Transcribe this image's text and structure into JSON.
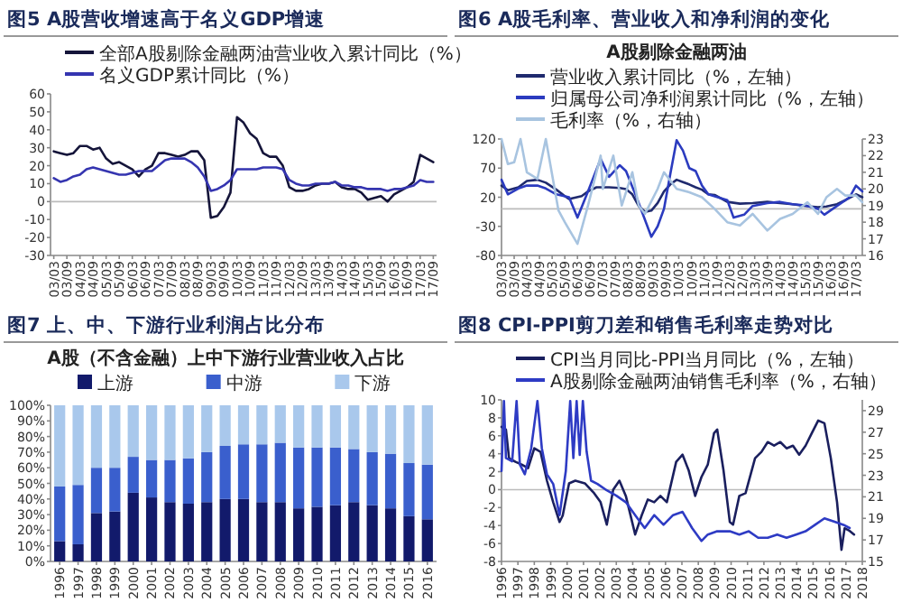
{
  "chart_data": [
    {
      "type": "line",
      "title": "图5  A股营收增速高于名义GDP增速",
      "legend": "top",
      "categories": [
        "03/03",
        null,
        "03/09",
        null,
        "04/03",
        null,
        "04/09",
        null,
        "05/03",
        null,
        "05/09",
        null,
        "06/03",
        null,
        "06/09",
        null,
        "07/03",
        null,
        "07/09",
        null,
        "08/03",
        null,
        "08/09",
        null,
        "09/03",
        null,
        "09/09",
        null,
        "10/03",
        null,
        "10/09",
        null,
        "11/03",
        null,
        "11/09",
        null,
        "12/03",
        null,
        "12/09",
        null,
        "13/03",
        null,
        "13/09",
        null,
        "14/03",
        null,
        "14/09",
        null,
        "15/03",
        null,
        "15/09",
        null,
        "16/03",
        null,
        "16/09",
        null,
        "17/03",
        null,
        "17/09"
      ],
      "ylim": [
        -30,
        60
      ],
      "yticks": [
        -30,
        -20,
        -10,
        0,
        10,
        20,
        30,
        40,
        50,
        60
      ],
      "ref_lines": [
        {
          "axis": "y",
          "value": 0,
          "color": "#bbbbbb"
        }
      ],
      "series": [
        {
          "name": "全部A股剔除金融两油营业收入累计同比（%）",
          "color": "#15153a",
          "values": [
            28,
            27,
            26,
            27,
            31,
            31,
            29,
            30,
            24,
            21,
            22,
            20,
            18,
            14,
            18,
            20,
            27,
            27,
            26,
            25,
            26,
            28,
            28,
            23,
            -9,
            -8,
            -3,
            5,
            47,
            44,
            38,
            35,
            27,
            25,
            25,
            20,
            8,
            6,
            6,
            7,
            9,
            10,
            10,
            11,
            8,
            7,
            7,
            5,
            1,
            2,
            3,
            0,
            4,
            6,
            8,
            11,
            26,
            24,
            22
          ]
        },
        {
          "name": "名义GDP累计同比（%）",
          "color": "#3535b0",
          "values": [
            13,
            11,
            12,
            14,
            15,
            18,
            19,
            18,
            17,
            16,
            15,
            15,
            16,
            17,
            17,
            17,
            20,
            23,
            24,
            24,
            24,
            22,
            19,
            14,
            6,
            7,
            9,
            12,
            18,
            18,
            18,
            18,
            19,
            19,
            19,
            18,
            12,
            10,
            9,
            9,
            10,
            10,
            10,
            11,
            9,
            9,
            8,
            8,
            7,
            7,
            7,
            6,
            7,
            7,
            8,
            9,
            12,
            11,
            11
          ]
        }
      ]
    },
    {
      "type": "line",
      "title": "图6  A股毛利率、营业收入和净利润的变化",
      "subtitle": "A股剔除金融两油",
      "legend": "top",
      "xlim": [
        "2003-03",
        "2017-06"
      ],
      "xticks": [
        {
          "value": "2003-03",
          "label": "03/03"
        },
        {
          "value": "2003-09",
          "label": "03/09"
        },
        {
          "value": "2004-03",
          "label": "04/03"
        },
        {
          "value": "2004-09",
          "label": "04/09"
        },
        {
          "value": "2005-03",
          "label": "05/03"
        },
        {
          "value": "2005-09",
          "label": "05/09"
        },
        {
          "value": "2006-03",
          "label": "06/03"
        },
        {
          "value": "2006-09",
          "label": "06/09"
        },
        {
          "value": "2007-03",
          "label": "07/03"
        },
        {
          "value": "2007-09",
          "label": "07/09"
        },
        {
          "value": "2008-03",
          "label": "08/03"
        },
        {
          "value": "2008-09",
          "label": "08/09"
        },
        {
          "value": "2009-03",
          "label": "09/03"
        },
        {
          "value": "2009-09",
          "label": "09/09"
        },
        {
          "value": "2010-03",
          "label": "10/03"
        },
        {
          "value": "2010-09",
          "label": "10/09"
        },
        {
          "value": "2011-03",
          "label": "11/03"
        },
        {
          "value": "2011-09",
          "label": "11/09"
        },
        {
          "value": "2012-03",
          "label": "12/03"
        },
        {
          "value": "2012-09",
          "label": "12/09"
        },
        {
          "value": "2013-03",
          "label": "13/03"
        },
        {
          "value": "2013-09",
          "label": "13/09"
        },
        {
          "value": "2014-03",
          "label": "14/03"
        },
        {
          "value": "2014-09",
          "label": "14/09"
        },
        {
          "value": "2015-03",
          "label": "15/03"
        },
        {
          "value": "2015-09",
          "label": "15/09"
        },
        {
          "value": "2016-03",
          "label": "16/03"
        },
        {
          "value": "2016-09",
          "label": "16/09"
        },
        {
          "value": "2017-03",
          "label": "17/03"
        }
      ],
      "ylim": [
        -80,
        120
      ],
      "yticks": [
        -80,
        -30,
        20,
        70,
        120
      ],
      "y2lim": [
        16,
        23
      ],
      "y2ticks": [
        16,
        17,
        18,
        19,
        20,
        21,
        22,
        23
      ],
      "ref_lines": [
        {
          "axis": "y",
          "value": 0,
          "color": "#bbbbbb"
        }
      ],
      "series": [
        {
          "name": "营业收入累计同比（%，左轴）",
          "color": "#1f2a6e",
          "x": [
            "2003-03",
            "2003-06",
            "2003-11",
            "2004-03",
            "2004-08",
            "2004-12",
            "2005-05",
            "2005-09",
            "2005-11",
            "2006-05",
            "2006-08",
            "2006-12",
            "2007-06",
            "2007-11",
            "2008-02",
            "2008-05",
            "2008-08",
            "2008-11",
            "2009-02",
            "2009-05",
            "2009-08",
            "2009-11",
            "2010-02",
            "2010-05",
            "2010-08",
            "2010-11",
            "2011-02",
            "2011-05",
            "2011-08",
            "2012-02",
            "2012-08",
            "2013-02",
            "2013-09",
            "2014-03",
            "2014-09",
            "2015-03",
            "2015-09",
            "2016-01",
            "2016-06",
            "2016-10",
            "2017-03",
            "2017-06"
          ],
          "values": [
            40,
            32,
            37,
            48,
            50,
            45,
            33,
            22,
            17,
            22,
            30,
            37,
            37,
            36,
            34,
            25,
            5,
            -5,
            -3,
            10,
            30,
            42,
            50,
            46,
            42,
            37,
            33,
            25,
            24,
            12,
            9,
            10,
            12,
            10,
            8,
            5,
            3,
            4,
            8,
            15,
            25,
            20
          ]
        },
        {
          "name": "归属母公司净利润累计同比（%，左轴）",
          "color": "#2b3bbf",
          "x": [
            "2003-03",
            "2003-06",
            "2003-11",
            "2004-03",
            "2004-08",
            "2004-12",
            "2005-05",
            "2005-11",
            "2006-03",
            "2006-08",
            "2007-02",
            "2007-06",
            "2007-11",
            "2008-02",
            "2008-07",
            "2009-02",
            "2009-05",
            "2009-08",
            "2009-11",
            "2010-02",
            "2010-05",
            "2010-08",
            "2010-11",
            "2011-02",
            "2011-05",
            "2012-02",
            "2012-05",
            "2012-10",
            "2013-02",
            "2013-09",
            "2014-03",
            "2014-09",
            "2015-03",
            "2015-09",
            "2015-12",
            "2016-06",
            "2016-12",
            "2017-03",
            "2017-06"
          ],
          "values": [
            50,
            25,
            35,
            40,
            40,
            35,
            25,
            20,
            -15,
            30,
            86,
            55,
            75,
            65,
            20,
            -48,
            -30,
            0,
            60,
            118,
            100,
            70,
            65,
            40,
            25,
            15,
            -15,
            -10,
            5,
            10,
            12,
            8,
            6,
            0,
            -10,
            5,
            20,
            40,
            30
          ]
        },
        {
          "name": "毛利率（%，右轴）",
          "color": "#a8c4e0",
          "axis": "y2",
          "x": [
            "2003-03",
            "2003-06",
            "2003-09",
            "2003-12",
            "2004-03",
            "2004-08",
            "2004-12",
            "2005-06",
            "2005-09",
            "2006-03",
            "2006-08",
            "2007-02",
            "2007-03",
            "2007-08",
            "2007-12",
            "2008-05",
            "2008-08",
            "2008-11",
            "2009-05",
            "2009-08",
            "2009-11",
            "2010-02",
            "2010-08",
            "2011-02",
            "2011-08",
            "2012-02",
            "2012-08",
            "2013-02",
            "2013-09",
            "2014-03",
            "2014-09",
            "2015-04",
            "2015-09",
            "2016-01",
            "2016-06",
            "2016-10",
            "2017-03",
            "2017-06"
          ],
          "values": [
            23,
            21.5,
            21.6,
            23,
            21,
            20.6,
            23,
            18.7,
            18,
            16.7,
            19,
            22,
            20,
            22,
            19,
            21,
            19,
            18.5,
            20,
            21,
            20.5,
            20,
            19.8,
            19.5,
            18.8,
            18,
            17.8,
            18.5,
            17.5,
            18.2,
            18.5,
            19.2,
            18.5,
            19.5,
            20,
            19.6,
            19.6,
            19.2
          ]
        }
      ]
    },
    {
      "type": "bar",
      "stacked": true,
      "title": "图7  上、中、下游行业利润占比分布",
      "subtitle": "A股（不含金融）上中下游行业营业收入占比",
      "legend": "top",
      "categories": [
        "1996",
        "1997",
        "1998",
        "1999",
        "2000",
        "2001",
        "2002",
        "2003",
        "2004",
        "2005",
        "2006",
        "2007",
        "2008",
        "2009",
        "2010",
        "2011",
        "2012",
        "2013",
        "2014",
        "2015",
        "2016"
      ],
      "ylim": [
        0,
        100
      ],
      "yticks": [
        {
          "value": 0,
          "label": "0%"
        },
        {
          "value": 10,
          "label": "10%"
        },
        {
          "value": 20,
          "label": "20%"
        },
        {
          "value": 30,
          "label": "30%"
        },
        {
          "value": 40,
          "label": "40%"
        },
        {
          "value": 50,
          "label": "50%"
        },
        {
          "value": 60,
          "label": "60%"
        },
        {
          "value": 70,
          "label": "70%"
        },
        {
          "value": 80,
          "label": "80%"
        },
        {
          "value": 90,
          "label": "90%"
        },
        {
          "value": 100,
          "label": "100%"
        }
      ],
      "series": [
        {
          "name": "上游",
          "color": "#121a6b",
          "values": [
            13,
            11,
            31,
            32,
            44,
            41,
            38,
            37,
            38,
            40,
            40,
            38,
            38,
            34,
            35,
            36,
            38,
            36,
            34,
            29,
            27
          ]
        },
        {
          "name": "中游",
          "color": "#3a5fcd",
          "values": [
            35,
            38,
            29,
            28,
            23,
            24,
            27,
            29,
            32,
            34,
            35,
            37,
            38,
            39,
            38,
            37,
            34,
            34,
            35,
            34,
            35
          ]
        },
        {
          "name": "下游",
          "color": "#a9c8ec",
          "values": [
            52,
            51,
            40,
            40,
            33,
            35,
            35,
            34,
            30,
            26,
            25,
            25,
            24,
            27,
            27,
            27,
            28,
            30,
            31,
            37,
            38
          ]
        }
      ]
    },
    {
      "type": "line",
      "title": "图8  CPI-PPI剪刀差和销售毛利率走势对比",
      "legend": "top",
      "xlim": [
        1996,
        2018
      ],
      "xticks": [
        1996,
        1997,
        1998,
        1999,
        2000,
        2001,
        2002,
        2003,
        2004,
        2005,
        2006,
        2007,
        2008,
        2009,
        2010,
        2011,
        2012,
        2013,
        2014,
        2015,
        2016,
        2017,
        2018
      ],
      "ylim": [
        -8,
        10
      ],
      "yticks": [
        -8,
        -6,
        -4,
        -2,
        0,
        2,
        4,
        6,
        8,
        10
      ],
      "y2lim": [
        15,
        30
      ],
      "y2ticks": [
        15,
        17,
        19,
        21,
        23,
        25,
        27,
        29
      ],
      "ref_lines": [
        {
          "axis": "y",
          "value": 0,
          "color": "#bbbbbb"
        }
      ],
      "series": [
        {
          "name": "CPI当月同比-PPI当月同比（%，左轴）",
          "color": "#1a1f5e",
          "x": [
            1996.0,
            1996.27,
            1996.46,
            1996.85,
            1997.23,
            1997.62,
            1998.0,
            1998.38,
            1998.77,
            1999.15,
            1999.54,
            1999.73,
            2000.12,
            2000.5,
            2001.08,
            2001.65,
            2002.04,
            2002.42,
            2002.81,
            2003.19,
            2003.58,
            2004.15,
            2004.54,
            2004.92,
            2005.31,
            2005.69,
            2006.08,
            2006.65,
            2007.04,
            2007.42,
            2007.81,
            2008.19,
            2008.58,
            2008.96,
            2009.15,
            2009.54,
            2009.92,
            2010.12,
            2010.5,
            2010.88,
            2011.46,
            2011.85,
            2012.23,
            2012.62,
            2013.0,
            2013.38,
            2013.77,
            2014.15,
            2014.54,
            2014.92,
            2015.31,
            2015.69,
            2016.08,
            2016.46,
            2016.73,
            2016.92,
            2017.23,
            2017.5
          ],
          "values": [
            7.0,
            6.7,
            3.5,
            3.1,
            2.8,
            2.4,
            4.6,
            4.2,
            1.0,
            -1.4,
            -3.6,
            -2.9,
            0.7,
            1.0,
            0.7,
            -0.4,
            -1.4,
            -3.9,
            0.0,
            1.0,
            -0.7,
            -5.0,
            -2.9,
            -1.1,
            -1.4,
            -0.7,
            -1.4,
            3.1,
            3.9,
            2.1,
            -0.7,
            1.4,
            2.8,
            6.3,
            6.7,
            2.1,
            -3.6,
            -3.9,
            -0.7,
            -0.4,
            3.5,
            4.2,
            5.3,
            4.9,
            5.3,
            4.6,
            4.9,
            3.9,
            4.9,
            6.3,
            7.7,
            7.4,
            3.5,
            -1.4,
            -6.7,
            -4.3,
            -4.6,
            -5.0
          ]
        },
        {
          "name": "A股剔除金融两油销售毛利率（%，右轴）",
          "color": "#2e3bc4",
          "axis": "y2",
          "x": [
            1996.0,
            1996.15,
            1996.27,
            1996.65,
            1996.92,
            1997.12,
            1997.42,
            1997.81,
            1998.19,
            1998.46,
            1998.77,
            1999.15,
            1999.54,
            1999.92,
            2000.19,
            2000.38,
            2000.58,
            2000.77,
            2000.96,
            2001.19,
            2001.46,
            2001.85,
            2002.42,
            2003.0,
            2003.58,
            2004.15,
            2004.73,
            2005.31,
            2005.88,
            2006.46,
            2007.04,
            2007.62,
            2008.19,
            2008.58,
            2009.15,
            2009.92,
            2010.5,
            2011.08,
            2011.65,
            2012.23,
            2012.81,
            2013.38,
            2013.96,
            2014.54,
            2015.12,
            2015.69,
            2016.27,
            2016.85,
            2017.23
          ],
          "values": [
            23.4,
            29.9,
            24.6,
            24.3,
            29.9,
            24.0,
            23.1,
            25.5,
            29.9,
            25.5,
            23.1,
            22.2,
            19.3,
            23.4,
            29.9,
            24.6,
            29.9,
            24.9,
            29.9,
            25.2,
            22.5,
            22.2,
            21.6,
            21.1,
            20.5,
            19.3,
            18.1,
            19.3,
            18.4,
            19.3,
            19.6,
            18.1,
            16.9,
            17.5,
            17.8,
            17.8,
            17.5,
            17.8,
            17.2,
            17.2,
            17.5,
            17.2,
            17.5,
            17.8,
            18.4,
            19.0,
            18.7,
            18.4,
            18.1
          ]
        }
      ]
    }
  ]
}
